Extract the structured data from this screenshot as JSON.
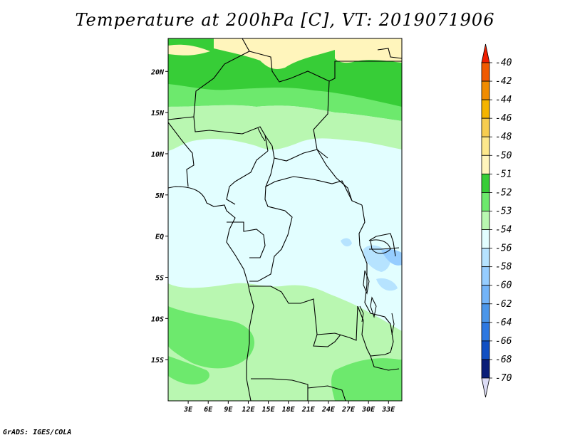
{
  "title": "Temperature at 200hPa [C], VT: 2019071906",
  "credit": "GrADS: IGES/COLA",
  "map": {
    "lat_labels": [
      "20N",
      "15N",
      "10N",
      "5N",
      "EQ",
      "5S",
      "10S",
      "15S"
    ],
    "lon_labels": [
      "3E",
      "6E",
      "9E",
      "12E",
      "15E",
      "18E",
      "21E",
      "24E",
      "27E",
      "30E",
      "33E"
    ],
    "lat_values": [
      20,
      15,
      10,
      5,
      0,
      -5,
      -10,
      -15
    ],
    "lon_values": [
      3,
      6,
      9,
      12,
      15,
      18,
      21,
      24,
      27,
      30,
      33
    ]
  },
  "colorbar": {
    "labels": [
      "-40",
      "-42",
      "-44",
      "-46",
      "-48",
      "-50",
      "-51",
      "-52",
      "-53",
      "-54",
      "-56",
      "-58",
      "-60",
      "-62",
      "-64",
      "-66",
      "-68",
      "-70"
    ],
    "colors": [
      "#f01e00",
      "#f05a00",
      "#f08c00",
      "#f5b400",
      "#f7cd50",
      "#fde88c",
      "#fff5bc",
      "#37cd37",
      "#6de96d",
      "#b9f7b1",
      "#e2feff",
      "#b6e3ff",
      "#96cdff",
      "#73b4f8",
      "#4b96e9",
      "#2d78e1",
      "#1150c3",
      "#0a1e78",
      "#dcdcf5"
    ]
  },
  "chart_data": {
    "type": "heatmap",
    "title": "Temperature at 200hPa [C], VT: 2019071906",
    "variable": "Temperature",
    "level": "200hPa",
    "units": "C",
    "valid_time": "2019071906",
    "lon_range": [
      0,
      35
    ],
    "lat_range": [
      -20,
      24
    ],
    "levels": [
      -40,
      -42,
      -44,
      -46,
      -48,
      -50,
      -51,
      -52,
      -53,
      -54,
      -56,
      -58,
      -60,
      -62,
      -64,
      -66,
      -68,
      -70
    ],
    "bands": [
      {
        "range": [
          -51,
          -50
        ],
        "region": "northern edge above 21N"
      },
      {
        "range": [
          -52,
          -51
        ],
        "region": "Sahel band 17N-22N"
      },
      {
        "range": [
          -53,
          -52
        ],
        "region": "13N-17N and southern Angola/Zambia"
      },
      {
        "range": [
          -54,
          -53
        ],
        "region": "9N-13N and 7S-18S"
      },
      {
        "range": [
          -56,
          -54
        ],
        "region": "equatorial belt 8N-7S"
      },
      {
        "range": [
          -58,
          -56
        ],
        "region": "small patches near Lake Victoria / Tanzania"
      }
    ]
  }
}
